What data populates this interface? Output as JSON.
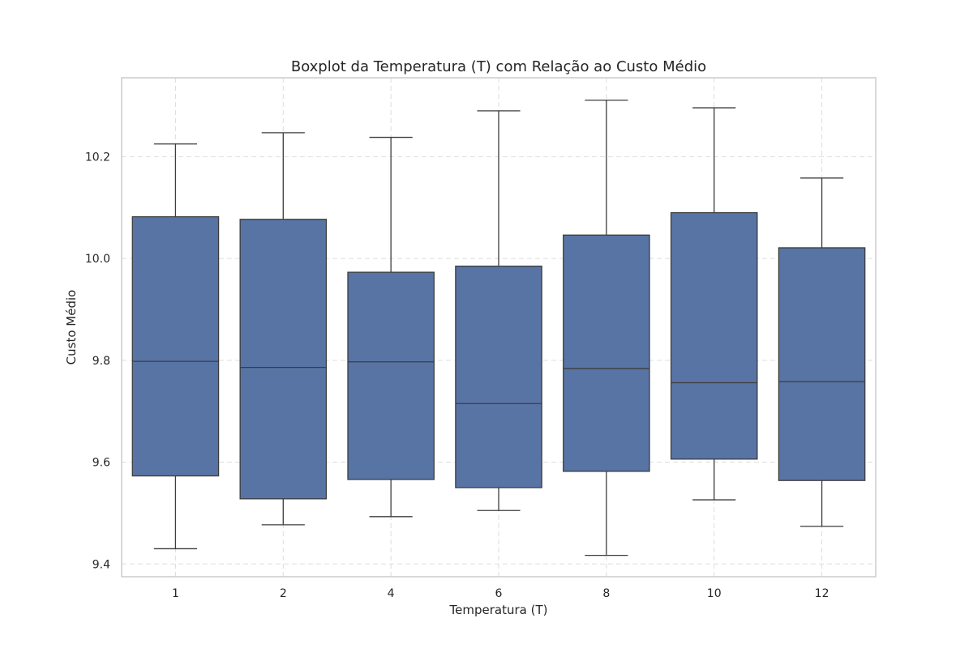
{
  "chart_data": {
    "type": "boxplot",
    "title": "Boxplot da Temperatura (T) com Relação ao Custo Médio",
    "xlabel": "Temperatura (T)",
    "ylabel": "Custo Médio",
    "categories": [
      "1",
      "2",
      "4",
      "6",
      "8",
      "10",
      "12"
    ],
    "ylim": [
      9.375,
      10.355
    ],
    "yticks": [
      "9.4",
      "9.6",
      "9.8",
      "10.0",
      "10.2"
    ],
    "ytick_values": [
      9.4,
      9.6,
      9.8,
      10.0,
      10.2
    ],
    "grid": true,
    "box_color": "#5874a5",
    "line_color": "#3d3d3d",
    "boxes": [
      {
        "category": "1",
        "whisker_low": 9.43,
        "q1": 9.573,
        "median": 9.798,
        "q3": 10.082,
        "whisker_high": 10.225
      },
      {
        "category": "2",
        "whisker_low": 9.477,
        "q1": 9.528,
        "median": 9.786,
        "q3": 10.077,
        "whisker_high": 10.247
      },
      {
        "category": "4",
        "whisker_low": 9.493,
        "q1": 9.566,
        "median": 9.797,
        "q3": 9.973,
        "whisker_high": 10.238
      },
      {
        "category": "6",
        "whisker_low": 9.505,
        "q1": 9.55,
        "median": 9.715,
        "q3": 9.985,
        "whisker_high": 10.29
      },
      {
        "category": "8",
        "whisker_low": 9.417,
        "q1": 9.582,
        "median": 9.784,
        "q3": 10.046,
        "whisker_high": 10.311
      },
      {
        "category": "10",
        "whisker_low": 9.526,
        "q1": 9.606,
        "median": 9.756,
        "q3": 10.09,
        "whisker_high": 10.296
      },
      {
        "category": "12",
        "whisker_low": 9.474,
        "q1": 9.564,
        "median": 9.758,
        "q3": 10.021,
        "whisker_high": 10.158
      }
    ]
  }
}
